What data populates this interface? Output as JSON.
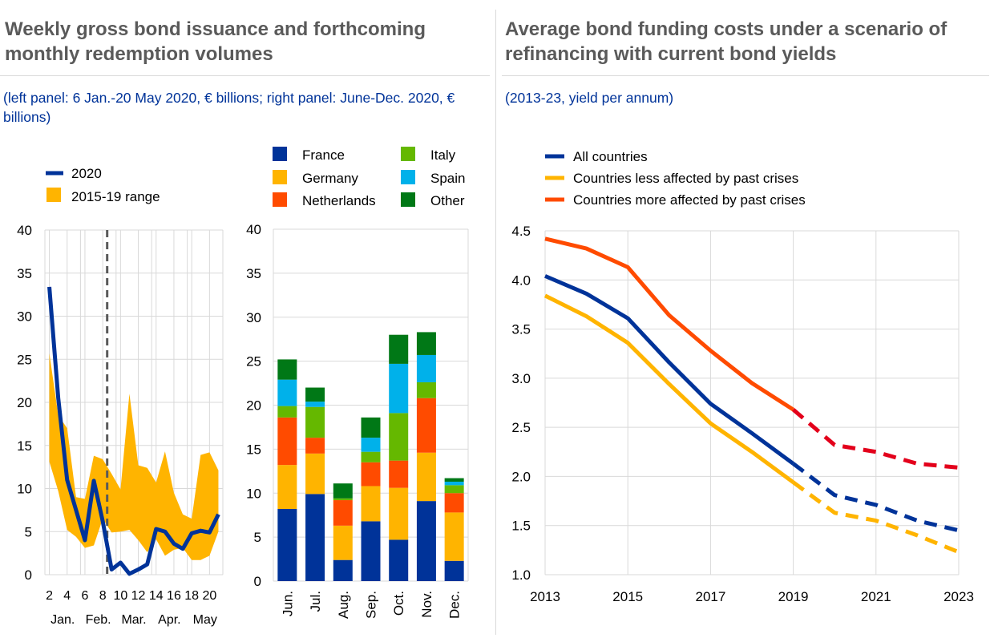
{
  "header": {
    "left_title": "Weekly gross bond issuance and forthcoming monthly redemption volumes",
    "left_subtitle": "(left panel: 6 Jan.-20 May 2020, € billions; right panel: June-Dec. 2020, € billions)",
    "right_title": "Average bond funding costs under a scenario of refinancing with current bond yields",
    "right_subtitle": "(2013-23, yield per annum)"
  },
  "colors": {
    "blue": "#003399",
    "yellow": "#ffb400",
    "orange": "#ff4b00",
    "lightgreen": "#65b800",
    "cyan": "#00b1ea",
    "darkgreen": "#007816",
    "red": "#e3001b",
    "grid": "#d9d9d9",
    "dash": "#595959"
  },
  "chart_data": [
    {
      "type": "line",
      "panel": "weekly-issuance",
      "legend": [
        "2020",
        "2015-19 range"
      ],
      "ylim": [
        0,
        40
      ],
      "yticks": [
        0,
        5,
        10,
        15,
        20,
        25,
        30,
        35,
        40
      ],
      "xlim": [
        1.5,
        21.5
      ],
      "xticks": [
        2,
        4,
        6,
        8,
        10,
        12,
        14,
        16,
        18,
        20
      ],
      "month_labels": [
        "Jan.",
        "Feb.",
        "Mar.",
        "Apr.",
        "May"
      ],
      "month_bounds": [
        1.5,
        5.5,
        9.5,
        13.5,
        17.5,
        21.5
      ],
      "marker_x": 8.5,
      "series": [
        {
          "name": "2020",
          "x": [
            2,
            3,
            4,
            5,
            6,
            7,
            8,
            9,
            10,
            11,
            12,
            13,
            14,
            15,
            16,
            17,
            18,
            19,
            20,
            21
          ],
          "values": [
            33.4,
            20.5,
            11.0,
            7.5,
            4.0,
            10.9,
            6.2,
            0.6,
            1.4,
            0.1,
            0.6,
            1.2,
            5.3,
            5.0,
            3.6,
            3.0,
            4.8,
            5.1,
            4.9,
            7.0
          ]
        }
      ],
      "range_2015_19": {
        "x": [
          2,
          3,
          4,
          5,
          6,
          7,
          8,
          9,
          10,
          11,
          12,
          13,
          14,
          15,
          16,
          17,
          18,
          19,
          20,
          21
        ],
        "upper": [
          25.7,
          18.5,
          17.0,
          9.0,
          8.8,
          13.8,
          13.4,
          11.7,
          9.9,
          21.0,
          12.7,
          12.4,
          10.7,
          14.3,
          9.5,
          7.0,
          6.5,
          13.9,
          14.2,
          12.1
        ],
        "lower": [
          13.1,
          9.7,
          5.2,
          4.4,
          3.1,
          3.4,
          6.5,
          4.9,
          5.0,
          5.2,
          4.0,
          2.6,
          4.1,
          2.2,
          2.9,
          3.1,
          1.7,
          1.7,
          2.2,
          5.0
        ]
      }
    },
    {
      "type": "bar",
      "panel": "monthly-redemptions",
      "stacked": true,
      "ylim": [
        0,
        40
      ],
      "yticks": [
        0,
        5,
        10,
        15,
        20,
        25,
        30,
        35,
        40
      ],
      "categories": [
        "Jun.",
        "Jul.",
        "Aug.",
        "Sep.",
        "Oct.",
        "Nov.",
        "Dec."
      ],
      "legend_order": [
        "France",
        "Italy",
        "Germany",
        "Spain",
        "Netherlands",
        "Other"
      ],
      "series": [
        {
          "name": "France",
          "color": "#003399",
          "values": [
            8.2,
            9.9,
            2.4,
            6.8,
            4.7,
            9.1,
            2.3
          ]
        },
        {
          "name": "Germany",
          "color": "#ffb400",
          "values": [
            5.0,
            4.6,
            3.9,
            4.0,
            5.9,
            5.5,
            5.5
          ]
        },
        {
          "name": "Netherlands",
          "color": "#ff4b00",
          "values": [
            5.4,
            1.8,
            2.9,
            2.7,
            3.1,
            6.2,
            2.2
          ]
        },
        {
          "name": "Italy",
          "color": "#65b800",
          "values": [
            1.3,
            3.5,
            0.2,
            1.2,
            5.4,
            1.8,
            0.9
          ]
        },
        {
          "name": "Spain",
          "color": "#00b1ea",
          "values": [
            3.0,
            0.6,
            0.0,
            1.6,
            5.6,
            3.1,
            0.4
          ]
        },
        {
          "name": "Other",
          "color": "#007816",
          "values": [
            2.3,
            1.6,
            1.7,
            2.3,
            3.3,
            2.6,
            0.4
          ]
        }
      ]
    },
    {
      "type": "line",
      "panel": "funding-costs",
      "xlim": [
        2013,
        2023
      ],
      "ylim": [
        1.0,
        4.5
      ],
      "yticks": [
        "1.0",
        "1.5",
        "2.0",
        "2.5",
        "3.0",
        "3.5",
        "4.0",
        "4.5"
      ],
      "xticks": [
        "2013",
        "2015",
        "2017",
        "2019",
        "2021",
        "2023"
      ],
      "projection_start": 2019,
      "series": [
        {
          "name": "All countries",
          "color": "#003399",
          "x": [
            2013,
            2014,
            2015,
            2016,
            2017,
            2018,
            2019,
            2020,
            2021,
            2022,
            2023
          ],
          "values": [
            4.04,
            3.86,
            3.61,
            3.16,
            2.74,
            2.44,
            2.13,
            1.81,
            1.71,
            1.55,
            1.45
          ]
        },
        {
          "name": "Countries less affected by past crises",
          "color": "#ffb400",
          "x": [
            2013,
            2014,
            2015,
            2016,
            2017,
            2018,
            2019,
            2020,
            2021,
            2022,
            2023
          ],
          "values": [
            3.84,
            3.63,
            3.36,
            2.94,
            2.54,
            2.25,
            1.94,
            1.63,
            1.55,
            1.4,
            1.23
          ]
        },
        {
          "name": "Countries more affected by past crises",
          "color": "#ff4b00",
          "projection_color": "#e3001b",
          "x": [
            2013,
            2014,
            2015,
            2016,
            2017,
            2018,
            2019,
            2020,
            2021,
            2022,
            2023
          ],
          "values": [
            4.42,
            4.32,
            4.13,
            3.64,
            3.28,
            2.95,
            2.68,
            2.32,
            2.25,
            2.13,
            2.09
          ]
        }
      ]
    }
  ]
}
